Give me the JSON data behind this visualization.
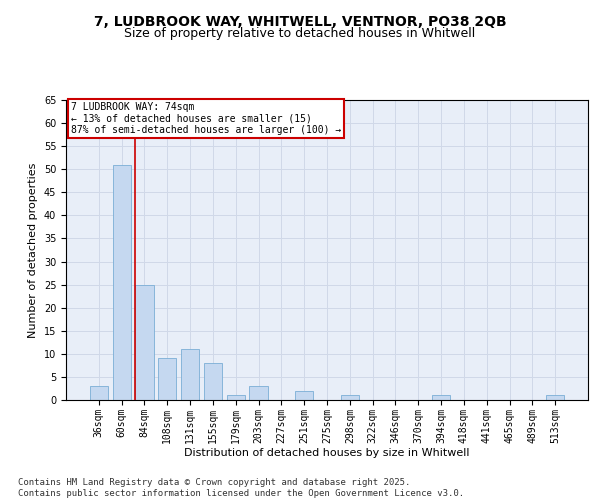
{
  "title1": "7, LUDBROOK WAY, WHITWELL, VENTNOR, PO38 2QB",
  "title2": "Size of property relative to detached houses in Whitwell",
  "xlabel": "Distribution of detached houses by size in Whitwell",
  "ylabel": "Number of detached properties",
  "categories": [
    "36sqm",
    "60sqm",
    "84sqm",
    "108sqm",
    "131sqm",
    "155sqm",
    "179sqm",
    "203sqm",
    "227sqm",
    "251sqm",
    "275sqm",
    "298sqm",
    "322sqm",
    "346sqm",
    "370sqm",
    "394sqm",
    "418sqm",
    "441sqm",
    "465sqm",
    "489sqm",
    "513sqm"
  ],
  "values": [
    3,
    51,
    25,
    9,
    11,
    8,
    1,
    3,
    0,
    2,
    0,
    1,
    0,
    0,
    0,
    1,
    0,
    0,
    0,
    0,
    1
  ],
  "bar_color": "#c5d8f0",
  "bar_edge_color": "#7aaed6",
  "bar_width": 0.8,
  "ylim": [
    0,
    65
  ],
  "yticks": [
    0,
    5,
    10,
    15,
    20,
    25,
    30,
    35,
    40,
    45,
    50,
    55,
    60,
    65
  ],
  "red_line_x": 1.5,
  "annotation_title": "7 LUDBROOK WAY: 74sqm",
  "annotation_line1": "← 13% of detached houses are smaller (15)",
  "annotation_line2": "87% of semi-detached houses are larger (100) →",
  "annotation_box_color": "#ffffff",
  "annotation_box_edge_color": "#cc0000",
  "red_line_color": "#cc0000",
  "grid_color": "#d0d8e8",
  "background_color": "#e8eef8",
  "footnote1": "Contains HM Land Registry data © Crown copyright and database right 2025.",
  "footnote2": "Contains public sector information licensed under the Open Government Licence v3.0.",
  "title_fontsize": 10,
  "subtitle_fontsize": 9,
  "axis_label_fontsize": 8,
  "tick_fontsize": 7,
  "annotation_fontsize": 7,
  "footnote_fontsize": 6.5
}
